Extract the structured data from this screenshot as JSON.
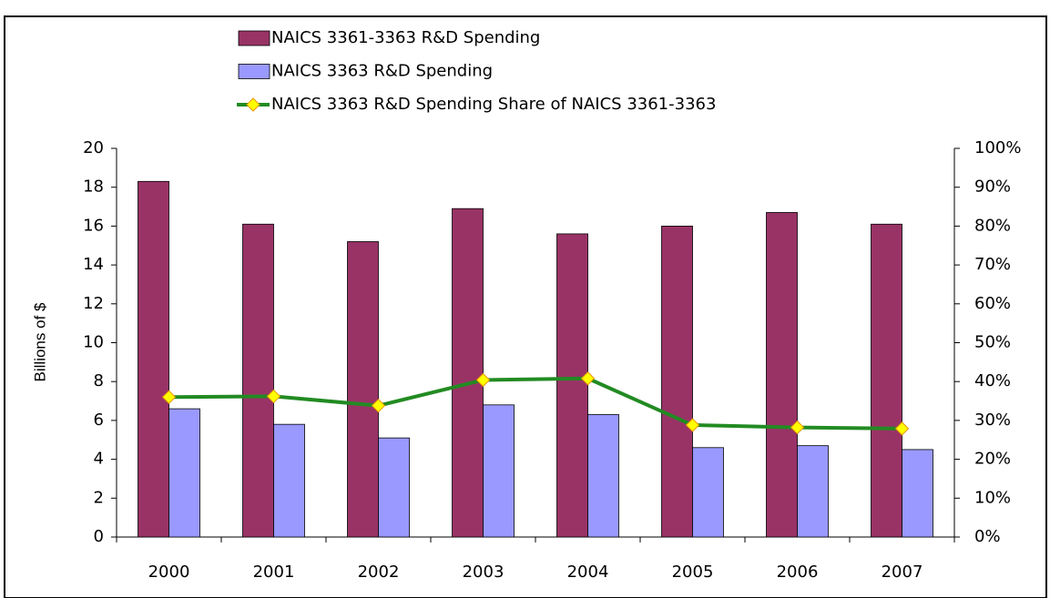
{
  "chart_data": {
    "type": "bar",
    "categories": [
      "2000",
      "2001",
      "2002",
      "2003",
      "2004",
      "2005",
      "2006",
      "2007"
    ],
    "y_label": "Billions of $",
    "series": [
      {
        "name": "NAICS 3361-3363 R&D Spending",
        "color": "#993366",
        "values": [
          18.3,
          16.1,
          15.2,
          16.9,
          15.6,
          16.0,
          16.7,
          16.1
        ]
      },
      {
        "name": "NAICS 3363 R&D Spending",
        "color": "#9999ff",
        "values": [
          6.6,
          5.8,
          5.1,
          6.8,
          6.3,
          4.6,
          4.7,
          4.5
        ]
      },
      {
        "name": "NAICS 3363 R&D Spending Share of NAICS 3361-3363",
        "type": "line",
        "axis": "y2",
        "color": "#228b22",
        "marker_color": "#ffff00",
        "values": [
          36.0,
          36.2,
          33.8,
          40.4,
          40.8,
          28.8,
          28.2,
          27.9
        ]
      }
    ],
    "ylim": [
      0,
      20
    ],
    "yticks": [
      0,
      2,
      4,
      6,
      8,
      10,
      12,
      14,
      16,
      18,
      20
    ],
    "y2lim": [
      0,
      100
    ],
    "y2ticks": [
      {
        "value": 0,
        "label": "0%"
      },
      {
        "value": 10,
        "label": "10%"
      },
      {
        "value": 20,
        "label": "20%"
      },
      {
        "value": 30,
        "label": "30%"
      },
      {
        "value": 40,
        "label": "40%"
      },
      {
        "value": 50,
        "label": "50%"
      },
      {
        "value": 60,
        "label": "60%"
      },
      {
        "value": 70,
        "label": "70%"
      },
      {
        "value": 80,
        "label": "80%"
      },
      {
        "value": 90,
        "label": "90%"
      },
      {
        "value": 100,
        "label": "100%"
      }
    ],
    "grid": false
  }
}
